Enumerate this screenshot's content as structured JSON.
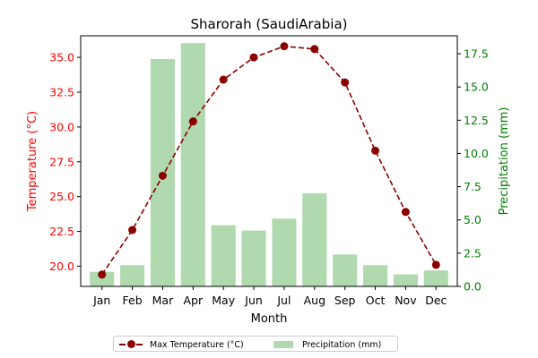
{
  "chart_data": {
    "type": "bar+line",
    "title": "Sharorah (SaudiArabia)",
    "xlabel": "Month",
    "categories": [
      "Jan",
      "Feb",
      "Mar",
      "Apr",
      "May",
      "Jun",
      "Jul",
      "Aug",
      "Sep",
      "Oct",
      "Nov",
      "Dec"
    ],
    "series": [
      {
        "name": "Max Temperature (°C)",
        "type": "line",
        "axis": "left",
        "values": [
          19.4,
          22.6,
          26.5,
          30.4,
          33.4,
          35.0,
          35.8,
          35.6,
          33.2,
          28.3,
          23.9,
          20.1
        ]
      },
      {
        "name": "Precipitation (mm)",
        "type": "bar",
        "axis": "right",
        "values": [
          1.1,
          1.6,
          17.1,
          18.3,
          4.6,
          4.2,
          5.1,
          7.0,
          2.4,
          1.6,
          0.9,
          1.2
        ]
      }
    ],
    "left_axis": {
      "label": "Temperature (°C)",
      "ylim": [
        18.55,
        36.55
      ],
      "ticks": [
        "20.0",
        "22.5",
        "25.0",
        "27.5",
        "30.0",
        "32.5",
        "35.0"
      ],
      "color": "#ff0000"
    },
    "right_axis": {
      "label": "Precipitation (mm)",
      "ylim": [
        0,
        18.85
      ],
      "ticks": [
        "0.0",
        "2.5",
        "5.0",
        "7.5",
        "10.0",
        "12.5",
        "15.0",
        "17.5"
      ],
      "color": "#008000"
    },
    "line_color": "#8b0000",
    "bar_color": "#b0d9b0",
    "legend_position": "bottom-center",
    "grid": false
  }
}
